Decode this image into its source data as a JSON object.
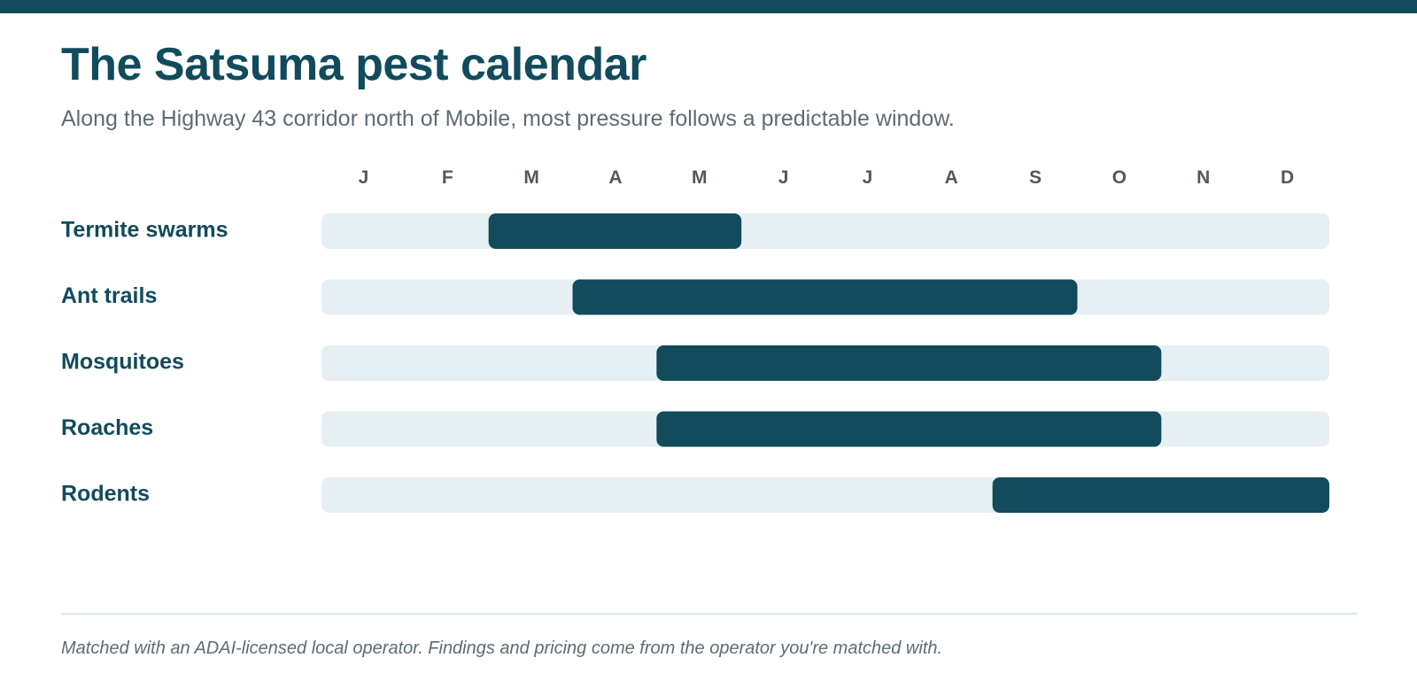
{
  "header": {
    "title": "The Satsuma pest calendar",
    "subtitle": "Along the Highway 43 corridor north of Mobile, most pressure follows a predictable window."
  },
  "footer": {
    "note": "Matched with an ADAI-licensed local operator. Findings and pricing come from the operator you're matched with."
  },
  "colors": {
    "accent": "#114b5c",
    "track": "#e6eff3"
  },
  "chart_data": {
    "type": "gantt",
    "month_labels": [
      "J",
      "F",
      "M",
      "A",
      "M",
      "J",
      "J",
      "A",
      "S",
      "O",
      "N",
      "D"
    ],
    "rows": [
      {
        "label": "Termite swarms",
        "start_month": 3,
        "end_month": 5
      },
      {
        "label": "Ant trails",
        "start_month": 4,
        "end_month": 9
      },
      {
        "label": "Mosquitoes",
        "start_month": 5,
        "end_month": 10
      },
      {
        "label": "Roaches",
        "start_month": 5,
        "end_month": 10
      },
      {
        "label": "Rodents",
        "start_month": 9,
        "end_month": 12
      }
    ]
  }
}
